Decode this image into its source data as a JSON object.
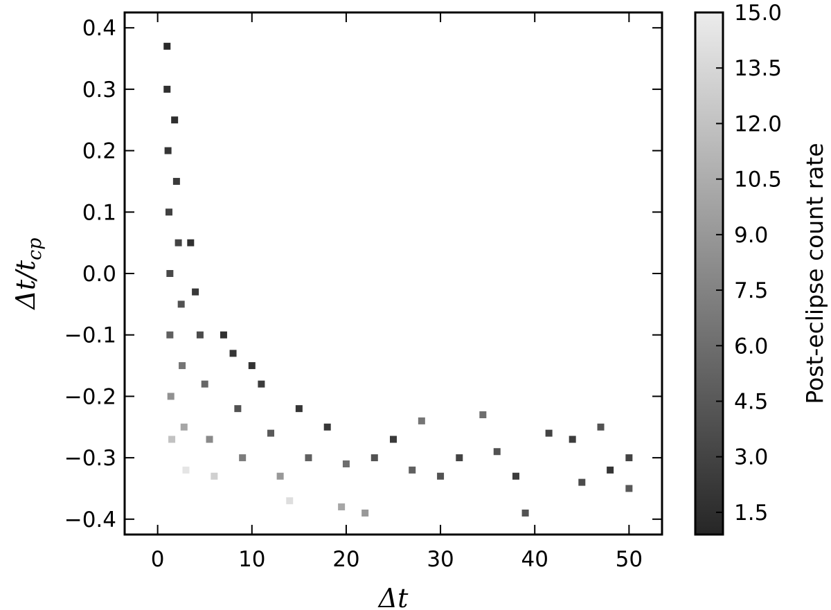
{
  "chart_data": {
    "type": "scatter",
    "title": "",
    "xlabel": "Δt",
    "ylabel": "Δt/t_cp",
    "ylabel_parts": {
      "base": "Δt/t",
      "subscript": "cp"
    },
    "xlim": [
      -3.5,
      53.5
    ],
    "ylim": [
      -0.425,
      0.425
    ],
    "xticks": [
      0,
      10,
      20,
      30,
      40,
      50
    ],
    "xtick_labels": [
      "0",
      "10",
      "20",
      "30",
      "40",
      "50"
    ],
    "yticks": [
      -0.4,
      -0.3,
      -0.2,
      -0.1,
      0.0,
      0.1,
      0.2,
      0.3,
      0.4
    ],
    "ytick_labels": [
      "−0.4",
      "−0.3",
      "−0.2",
      "−0.1",
      "0.0",
      "0.1",
      "0.2",
      "0.3",
      "0.4"
    ],
    "grid": false,
    "marker": "square",
    "colormap": {
      "name": "gray",
      "min": 0.9,
      "max": 15.0,
      "low_color": "#262626",
      "high_color": "#ececec",
      "label": "Post-eclipse count rate",
      "ticks": [
        1.5,
        3.0,
        4.5,
        6.0,
        7.5,
        9.0,
        10.5,
        12.0,
        13.5,
        15.0
      ],
      "tick_labels": [
        "1.5",
        "3.0",
        "4.5",
        "6.0",
        "7.5",
        "9.0",
        "10.5",
        "12.0",
        "13.5",
        "15.0"
      ]
    },
    "series": [
      {
        "x_y_c": [
          [
            1.0,
            0.37,
            1.2
          ],
          [
            1.0,
            0.3,
            1.6
          ],
          [
            1.1,
            0.2,
            2.0
          ],
          [
            1.2,
            0.1,
            2.8
          ],
          [
            1.3,
            0.0,
            3.4
          ],
          [
            1.3,
            -0.1,
            5.0
          ],
          [
            1.4,
            -0.2,
            8.5
          ],
          [
            1.5,
            -0.27,
            12.0
          ],
          [
            1.8,
            0.25,
            1.5
          ],
          [
            2.0,
            0.15,
            2.3
          ],
          [
            2.2,
            0.05,
            3.0
          ],
          [
            2.5,
            -0.05,
            4.0
          ],
          [
            2.6,
            -0.15,
            6.5
          ],
          [
            2.8,
            -0.25,
            10.0
          ],
          [
            3.0,
            -0.32,
            14.5
          ],
          [
            3.5,
            0.05,
            1.6
          ],
          [
            4.0,
            -0.03,
            2.2
          ],
          [
            4.5,
            -0.1,
            3.5
          ],
          [
            5.0,
            -0.18,
            5.5
          ],
          [
            5.5,
            -0.27,
            8.0
          ],
          [
            6.0,
            -0.33,
            13.0
          ],
          [
            7.0,
            -0.1,
            1.7
          ],
          [
            8.0,
            -0.13,
            2.0
          ],
          [
            8.5,
            -0.22,
            4.0
          ],
          [
            9.0,
            -0.3,
            7.0
          ],
          [
            10.0,
            -0.15,
            1.8
          ],
          [
            11.0,
            -0.18,
            2.5
          ],
          [
            12.0,
            -0.26,
            4.5
          ],
          [
            13.0,
            -0.33,
            9.0
          ],
          [
            14.0,
            -0.37,
            14.0
          ],
          [
            15.0,
            -0.22,
            2.0
          ],
          [
            16.0,
            -0.3,
            5.0
          ],
          [
            18.0,
            -0.25,
            2.2
          ],
          [
            19.5,
            -0.38,
            10.0
          ],
          [
            20.0,
            -0.31,
            6.0
          ],
          [
            22.0,
            -0.39,
            9.0
          ],
          [
            23.0,
            -0.3,
            4.0
          ],
          [
            25.0,
            -0.27,
            2.3
          ],
          [
            27.0,
            -0.32,
            5.0
          ],
          [
            28.0,
            -0.24,
            6.5
          ],
          [
            30.0,
            -0.33,
            4.0
          ],
          [
            32.0,
            -0.3,
            3.0
          ],
          [
            34.5,
            -0.23,
            6.0
          ],
          [
            36.0,
            -0.29,
            4.0
          ],
          [
            38.0,
            -0.33,
            2.5
          ],
          [
            39.0,
            -0.39,
            4.0
          ],
          [
            41.5,
            -0.26,
            3.0
          ],
          [
            44.0,
            -0.27,
            2.5
          ],
          [
            45.0,
            -0.34,
            3.5
          ],
          [
            47.0,
            -0.25,
            4.0
          ],
          [
            48.0,
            -0.32,
            2.0
          ],
          [
            50.0,
            -0.3,
            3.0
          ],
          [
            50.0,
            -0.35,
            4.5
          ]
        ]
      }
    ]
  }
}
